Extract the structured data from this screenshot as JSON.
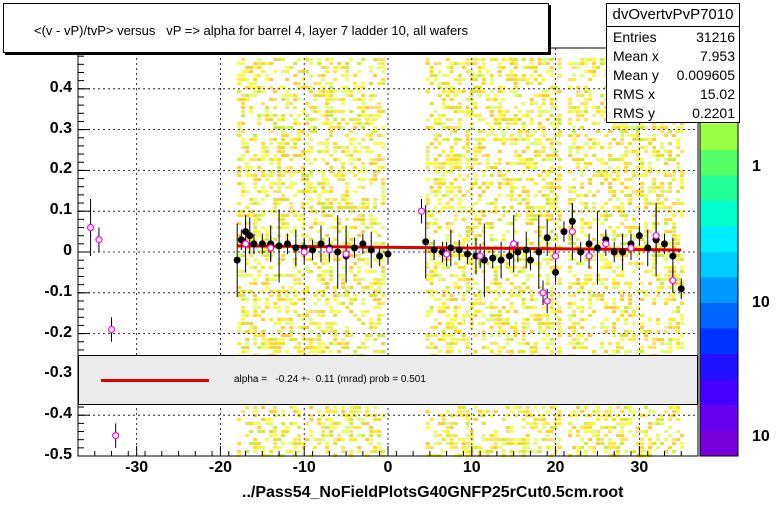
{
  "title": "<(v - vP)/tvP> versus   vP => alpha for barrel 4, layer 7 ladder 10, all wafers",
  "footer": "../Pass54_NoFieldPlotsG40GNFP25rCut0.5cm.root",
  "stats": {
    "name": "dvOvertvPvP7010",
    "rows": [
      {
        "label": "Entries",
        "value": "31216"
      },
      {
        "label": "Mean x",
        "value": "7.953"
      },
      {
        "label": "Mean y",
        "value": "0.009605"
      },
      {
        "label": "RMS x",
        "value": "15.02"
      },
      {
        "label": "RMS y",
        "value": "0.2201"
      }
    ]
  },
  "fit": {
    "text": "alpha =   -0.24 +-  0.11 (mrad) prob = 0.501",
    "color": "#e00000"
  },
  "colorbar_labels": [
    "1",
    "10",
    "10"
  ],
  "chart_data": {
    "type": "scatter",
    "title": "<(v - vP)/tvP> versus   vP => alpha for barrel 4, layer 7 ladder 10, all wafers",
    "xlim": [
      -37,
      37
    ],
    "ylim": [
      -0.5,
      0.5
    ],
    "x_ticks": [
      -30,
      -20,
      -10,
      0,
      10,
      20,
      30
    ],
    "x_tick_labels": [
      "-30",
      "-20",
      "-10",
      "0",
      "10",
      "20",
      "30"
    ],
    "y_ticks": [
      0.4,
      0.3,
      0.2,
      0.1,
      0,
      -0.1,
      -0.2,
      -0.3,
      -0.4,
      -0.5
    ],
    "y_tick_labels": [
      "0.4",
      "0.3",
      "0.2",
      "0.1",
      "0",
      "-0.1",
      "-0.2",
      "-0.3",
      "-0.4",
      "-0.5"
    ],
    "grid": true,
    "density_bands": [
      [
        -18,
        -0.5
      ],
      [
        4.5,
        20.5
      ],
      [
        21.5,
        35
      ]
    ],
    "fit_line": {
      "x": [
        -18,
        35
      ],
      "y": [
        0.015,
        0.005
      ],
      "color": "#e00000"
    },
    "black_points": [
      [
        -18,
        -0.02
      ],
      [
        -17.5,
        0.03
      ],
      [
        -17,
        0.05
      ],
      [
        -16.5,
        0.04
      ],
      [
        -16,
        0.02
      ],
      [
        -15,
        0.02
      ],
      [
        -14,
        0.02
      ],
      [
        -13,
        0.015
      ],
      [
        -12,
        0.02
      ],
      [
        -11,
        0.01
      ],
      [
        -10,
        0.01
      ],
      [
        -9,
        0.005
      ],
      [
        -8,
        0.02
      ],
      [
        -7,
        0.01
      ],
      [
        -6,
        0.0
      ],
      [
        -5,
        -0.01
      ],
      [
        -4,
        0.01
      ],
      [
        -3,
        0.02
      ],
      [
        -2,
        0.005
      ],
      [
        -1,
        -0.01
      ],
      [
        0,
        -0.005
      ],
      [
        4.5,
        0.025
      ],
      [
        5.5,
        0.005
      ],
      [
        6.5,
        0.0
      ],
      [
        7.5,
        0.01
      ],
      [
        8.5,
        0.005
      ],
      [
        9.5,
        -0.005
      ],
      [
        10.5,
        -0.01
      ],
      [
        11.5,
        -0.02
      ],
      [
        12.5,
        -0.015
      ],
      [
        13.5,
        -0.02
      ],
      [
        14.5,
        -0.01
      ],
      [
        15.5,
        0.0
      ],
      [
        16.5,
        0.005
      ],
      [
        17,
        -0.02
      ],
      [
        18,
        0.0
      ],
      [
        19,
        0.035
      ],
      [
        20,
        -0.05
      ],
      [
        21,
        0.05
      ],
      [
        22,
        0.075
      ],
      [
        23,
        0.0
      ],
      [
        24,
        0.02
      ],
      [
        25,
        0.01
      ],
      [
        26,
        0.03
      ],
      [
        27,
        0.0
      ],
      [
        28,
        0.0
      ],
      [
        29,
        0.02
      ],
      [
        30,
        0.04
      ],
      [
        31,
        0.01
      ],
      [
        32,
        0.03
      ],
      [
        33,
        0.02
      ],
      [
        34,
        -0.01
      ],
      [
        35,
        -0.09
      ]
    ],
    "magenta_points": [
      [
        -35.5,
        0.06
      ],
      [
        -34.5,
        0.03
      ],
      [
        -33,
        -0.19
      ],
      [
        -32.5,
        -0.45
      ],
      [
        -17,
        0.02
      ],
      [
        -14,
        0.01
      ],
      [
        -10,
        0.0
      ],
      [
        -7,
        0.005
      ],
      [
        -5,
        -0.005
      ],
      [
        4,
        0.1
      ],
      [
        7,
        -0.005
      ],
      [
        11,
        -0.01
      ],
      [
        15,
        0.02
      ],
      [
        18.5,
        -0.1
      ],
      [
        19,
        -0.12
      ],
      [
        20,
        -0.01
      ],
      [
        22,
        0.05
      ],
      [
        24,
        -0.01
      ],
      [
        26,
        0.02
      ],
      [
        29,
        0.01
      ],
      [
        32,
        0.04
      ],
      [
        34,
        -0.07
      ]
    ]
  }
}
